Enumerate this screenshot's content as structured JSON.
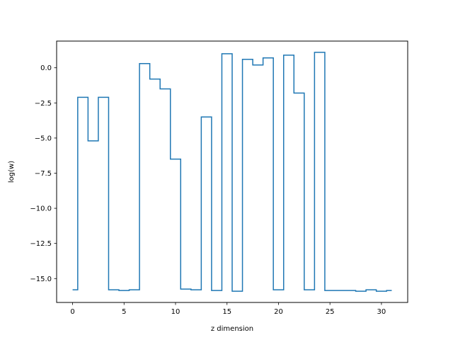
{
  "chart_data": {
    "type": "line",
    "step": "mid",
    "title": "",
    "xlabel": "z dimension",
    "ylabel": "log(w)",
    "xlim": [
      -1.55,
      32.55
    ],
    "ylim": [
      -16.7,
      1.9
    ],
    "xticks": [
      0,
      5,
      10,
      15,
      20,
      25,
      30
    ],
    "yticks": [
      0.0,
      -2.5,
      -5.0,
      -7.5,
      -10.0,
      -12.5,
      -15.0
    ],
    "xtick_labels": [
      "0",
      "5",
      "10",
      "15",
      "20",
      "25",
      "30"
    ],
    "ytick_labels": [
      "0.0",
      "−2.5",
      "−5.0",
      "−7.5",
      "−10.0",
      "−12.5",
      "−15.0"
    ],
    "grid": false,
    "series": [
      {
        "color": "#1f77b4",
        "x": [
          0,
          1,
          2,
          3,
          4,
          5,
          6,
          7,
          8,
          9,
          10,
          11,
          12,
          13,
          14,
          15,
          16,
          17,
          18,
          19,
          20,
          21,
          22,
          23,
          24,
          25,
          26,
          27,
          28,
          29,
          30,
          31
        ],
        "y": [
          -15.8,
          -2.1,
          -5.2,
          -2.1,
          -15.8,
          -15.85,
          -15.8,
          0.3,
          -0.8,
          -1.5,
          -6.5,
          -15.75,
          -15.8,
          -3.5,
          -15.85,
          1.0,
          -15.9,
          0.6,
          0.2,
          0.7,
          -15.8,
          0.9,
          -1.8,
          -15.8,
          1.1,
          -15.85,
          -15.85,
          -15.85,
          -15.9,
          -15.8,
          -15.9,
          -15.85
        ]
      }
    ]
  }
}
